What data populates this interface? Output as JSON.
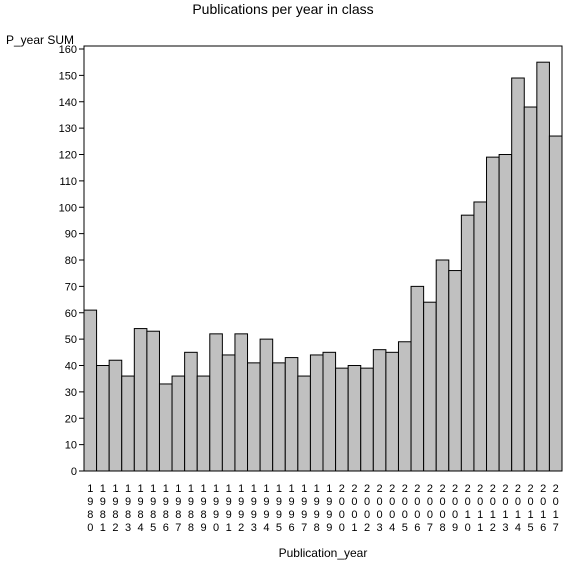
{
  "chart_data": {
    "type": "bar",
    "title": "Publications per year in class",
    "xlabel": "Publication_year",
    "ylabel": "P_year SUM",
    "ylim": [
      0,
      160
    ],
    "yticks": [
      0,
      10,
      20,
      30,
      40,
      50,
      60,
      70,
      80,
      90,
      100,
      110,
      120,
      130,
      140,
      150,
      160
    ],
    "grid": false,
    "bar_color": "#c0c0c0",
    "bar_stroke": "#000000",
    "categories": [
      "1980",
      "1981",
      "1982",
      "1983",
      "1984",
      "1985",
      "1986",
      "1987",
      "1988",
      "1989",
      "1990",
      "1991",
      "1992",
      "1993",
      "1994",
      "1995",
      "1996",
      "1997",
      "1998",
      "1999",
      "2000",
      "2001",
      "2002",
      "2003",
      "2004",
      "2005",
      "2006",
      "2007",
      "2008",
      "2009",
      "2010",
      "2011",
      "2012",
      "2013",
      "2014",
      "2015",
      "2016",
      "2017"
    ],
    "values": [
      61,
      40,
      42,
      36,
      54,
      53,
      33,
      36,
      45,
      36,
      52,
      44,
      52,
      41,
      50,
      41,
      43,
      36,
      44,
      45,
      39,
      40,
      39,
      46,
      45,
      49,
      70,
      64,
      80,
      76,
      97,
      102,
      119,
      120,
      149,
      138,
      155,
      127
    ]
  }
}
